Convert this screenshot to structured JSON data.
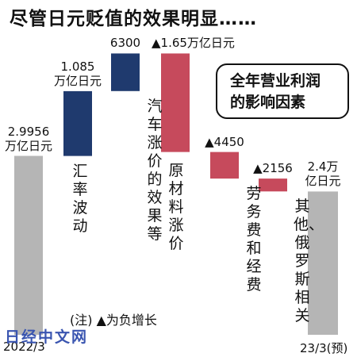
{
  "title": "尽管日元贬值的效果明显……",
  "legend_text": [
    "全年营业利润",
    "的影响因素"
  ],
  "note": "(注)  ▲为负增长",
  "watermark": "日经中文网",
  "colors": {
    "total": "#b5b5b5",
    "positive": "#1f3a6e",
    "negative": "#c64a5c"
  },
  "chart_data": {
    "type": "bar",
    "subtype": "waterfall",
    "unit": "亿日元",
    "categories": [
      "2022/3",
      "汇率波动",
      "汽车涨价的效果等",
      "原材料涨价",
      "劳务费和经费",
      "其他、俄罗斯相关",
      "23/3(预)"
    ],
    "period_labels": [
      "2022/3",
      "23/3(预)"
    ],
    "steps": [
      {
        "kind": "total",
        "value": 29956,
        "label": "2.9956\n万亿日元",
        "axis": "2022/3",
        "vname": ""
      },
      {
        "kind": "delta",
        "value": 10850,
        "label": "1.085\n万亿日元",
        "vname": "汇率波动"
      },
      {
        "kind": "delta",
        "value": 6300,
        "label": "6300",
        "vname": "汽车涨价的效果等"
      },
      {
        "kind": "delta",
        "value": -16500,
        "label": "▲1.65万亿日元",
        "vname": "原材料涨价"
      },
      {
        "kind": "delta",
        "value": -4450,
        "label": "▲4450",
        "vname": "劳务费和经费"
      },
      {
        "kind": "delta",
        "value": -2156,
        "label": "▲2156",
        "vname": "其他、俄罗斯相关"
      },
      {
        "kind": "total",
        "value": 24000,
        "label": "2.4万\n亿日元",
        "axis": "23/3(预)",
        "vname": ""
      }
    ]
  }
}
